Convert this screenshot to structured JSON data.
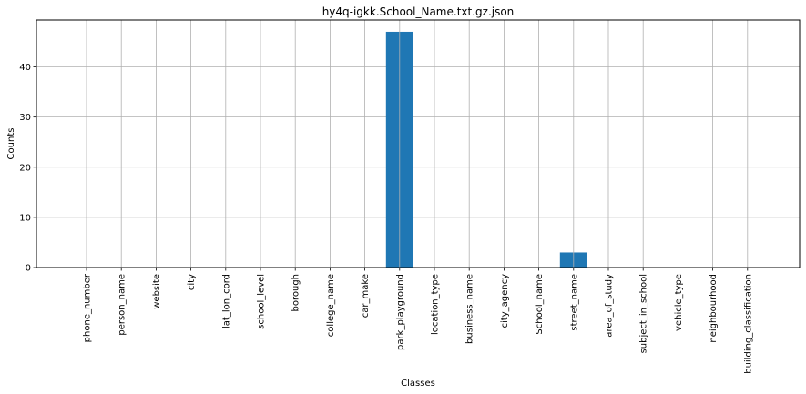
{
  "chart_data": {
    "type": "bar",
    "title": "hy4q-igkk.School_Name.txt.gz.json",
    "xlabel": "Classes",
    "ylabel": "Counts",
    "categories": [
      "phone_number",
      "person_name",
      "website",
      "city",
      "lat_lon_cord",
      "school_level",
      "borough",
      "college_name",
      "car_make",
      "park_playground",
      "location_type",
      "business_name",
      "city_agency",
      "School_name",
      "street_name",
      "area_of_study",
      "subject_in_school",
      "vehicle_type",
      "neighbourhood",
      "building_classification"
    ],
    "values": [
      0,
      0,
      0,
      0,
      0,
      0,
      0,
      0,
      0,
      47,
      0,
      0,
      0,
      0,
      3,
      0,
      0,
      0,
      0,
      0
    ],
    "ylim": [
      0,
      49.35
    ],
    "yticks": [
      0,
      10,
      20,
      30,
      40
    ],
    "grid": true,
    "bar_color": "#1f77b4"
  }
}
